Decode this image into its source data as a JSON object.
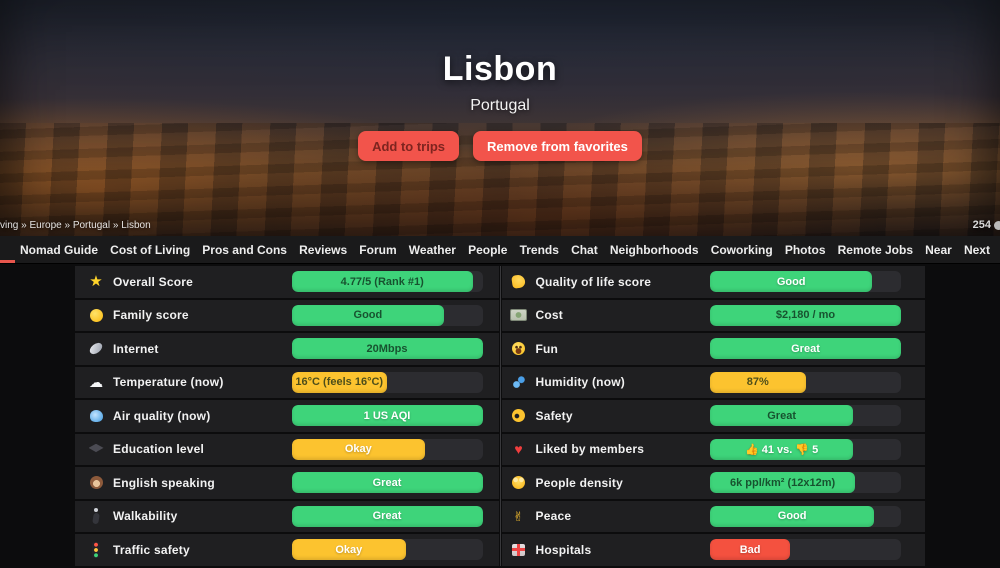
{
  "hero": {
    "city": "Lisbon",
    "country": "Portugal",
    "add_button_label": "Add to trips",
    "remove_button_label": "Remove from favorites",
    "breadcrumb": "ving » Europe » Portugal » Lisbon",
    "counter": "254"
  },
  "tabs": {
    "items": [
      "Nomad Guide",
      "Cost of Living",
      "Pros and Cons",
      "Reviews",
      "Forum",
      "Weather",
      "People",
      "Trends",
      "Chat",
      "Neighborhoods",
      "Coworking",
      "Photos",
      "Remote Jobs",
      "Near",
      "Next"
    ],
    "active_indicator_color": "#e8564d"
  },
  "colors": {
    "green": "#3ed47a",
    "yellow": "#fcc32f",
    "red": "#f4513f",
    "track": "#2c2c30",
    "button_red": "#f2544b",
    "row_bg": "#1f1f21"
  },
  "table": {
    "left": [
      {
        "icon": "star-icon",
        "glyph": "★",
        "label": "Overall Score",
        "value": "4.77/5 (Rank #1)",
        "color": "green",
        "pct": 95,
        "tone": "dark"
      },
      {
        "icon": "chick-icon",
        "glyph": "",
        "label": "Family score",
        "value": "Good",
        "color": "green",
        "pct": 80,
        "tone": "dark"
      },
      {
        "icon": "satellite-icon",
        "glyph": "",
        "label": "Internet",
        "value": "20Mbps",
        "color": "green",
        "pct": 100,
        "tone": "dark"
      },
      {
        "icon": "cloud-icon",
        "glyph": "☁",
        "label": "Temperature (now)",
        "value": "16°C (feels 16°C)",
        "color": "yellow",
        "pct": 50,
        "tone": "dark"
      },
      {
        "icon": "wind-icon",
        "glyph": "",
        "label": "Air quality (now)",
        "value": "1 US AQI",
        "color": "green",
        "pct": 100,
        "tone": "light"
      },
      {
        "icon": "graduation-cap-icon",
        "glyph": "",
        "label": "Education level",
        "value": "Okay",
        "color": "yellow",
        "pct": 70,
        "tone": "light"
      },
      {
        "icon": "monkey-icon",
        "glyph": "",
        "label": "English speaking",
        "value": "Great",
        "color": "green",
        "pct": 100,
        "tone": "light"
      },
      {
        "icon": "pedestrian-icon",
        "glyph": "",
        "label": "Walkability",
        "value": "Great",
        "color": "green",
        "pct": 100,
        "tone": "light"
      },
      {
        "icon": "traffic-light-icon",
        "glyph": "",
        "label": "Traffic safety",
        "value": "Okay",
        "color": "yellow",
        "pct": 60,
        "tone": "light"
      }
    ],
    "right": [
      {
        "icon": "thumbs-up-icon",
        "glyph": "",
        "label": "Quality of life score",
        "value": "Good",
        "color": "green",
        "pct": 85,
        "tone": "light"
      },
      {
        "icon": "money-icon",
        "glyph": "",
        "label": "Cost",
        "value": "$2,180 / mo",
        "color": "green",
        "pct": 100,
        "tone": "dark"
      },
      {
        "icon": "smiley-icon",
        "glyph": "",
        "label": "Fun",
        "value": "Great",
        "color": "green",
        "pct": 100,
        "tone": "light"
      },
      {
        "icon": "droplets-icon",
        "glyph": "",
        "label": "Humidity (now)",
        "value": "87%",
        "color": "yellow",
        "pct": 50,
        "tone": "dark"
      },
      {
        "icon": "ok-hand-icon",
        "glyph": "",
        "label": "Safety",
        "value": "Great",
        "color": "green",
        "pct": 75,
        "tone": "dark"
      },
      {
        "icon": "heart-icon",
        "glyph": "♥",
        "label": "Liked by members",
        "value": "👍 41 vs. 👎 5",
        "color": "green",
        "pct": 75,
        "tone": "light"
      },
      {
        "icon": "people-icon",
        "glyph": "",
        "label": "People density",
        "value": "6k ppl/km² (12x12m)",
        "color": "green",
        "pct": 76,
        "tone": "dark"
      },
      {
        "icon": "peace-hand-icon",
        "glyph": "✌",
        "label": "Peace",
        "value": "Good",
        "color": "green",
        "pct": 86,
        "tone": "light"
      },
      {
        "icon": "hospital-icon",
        "glyph": "",
        "label": "Hospitals",
        "value": "Bad",
        "color": "red",
        "pct": 42,
        "tone": "light"
      }
    ]
  }
}
